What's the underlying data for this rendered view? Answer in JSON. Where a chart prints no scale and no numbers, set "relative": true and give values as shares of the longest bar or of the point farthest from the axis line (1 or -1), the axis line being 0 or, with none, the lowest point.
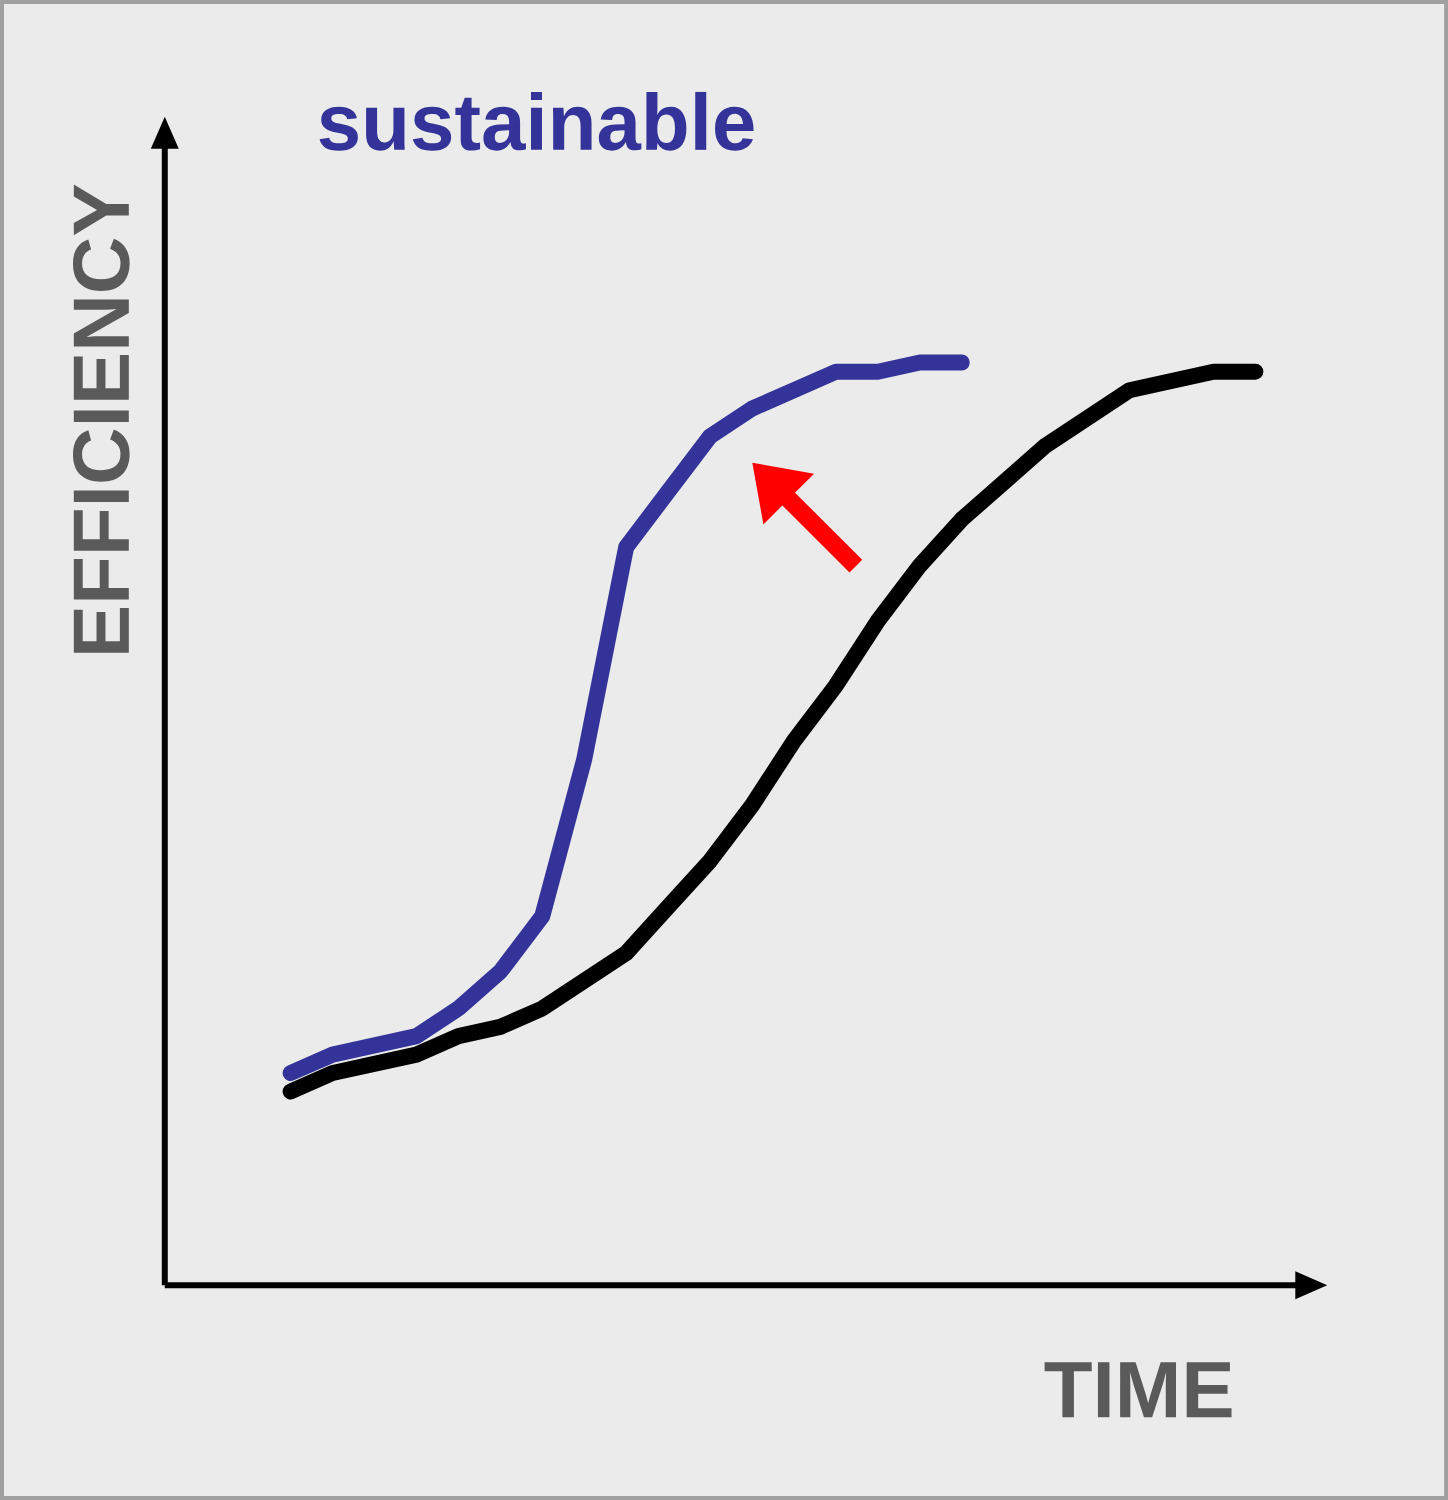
{
  "chart_data": {
    "type": "line",
    "relative": true,
    "xlabel": "TIME",
    "ylabel": "EFFICIENCY",
    "categories": [
      null,
      null,
      null,
      null,
      null,
      null,
      null,
      null,
      null,
      null,
      null,
      null,
      null,
      null,
      null,
      null,
      null,
      null,
      null,
      null,
      null,
      null,
      null,
      null
    ],
    "series": [
      {
        "name": "sustainable",
        "color": "#333399",
        "values": [
          0.23,
          0.25,
          0.26,
          0.27,
          0.3,
          0.34,
          0.4,
          0.57,
          0.8,
          0.86,
          0.92,
          0.95,
          0.97,
          0.99,
          0.99,
          1.0,
          1.0,
          null,
          null,
          null,
          null,
          null,
          null,
          null
        ]
      },
      {
        "color": "#000000",
        "values": [
          0.21,
          0.23,
          0.24,
          0.25,
          0.27,
          0.28,
          0.3,
          0.33,
          0.36,
          0.41,
          0.46,
          0.52,
          0.59,
          0.65,
          0.72,
          0.78,
          0.83,
          0.87,
          0.91,
          0.94,
          0.97,
          0.98,
          0.99,
          0.99
        ]
      }
    ]
  }
}
